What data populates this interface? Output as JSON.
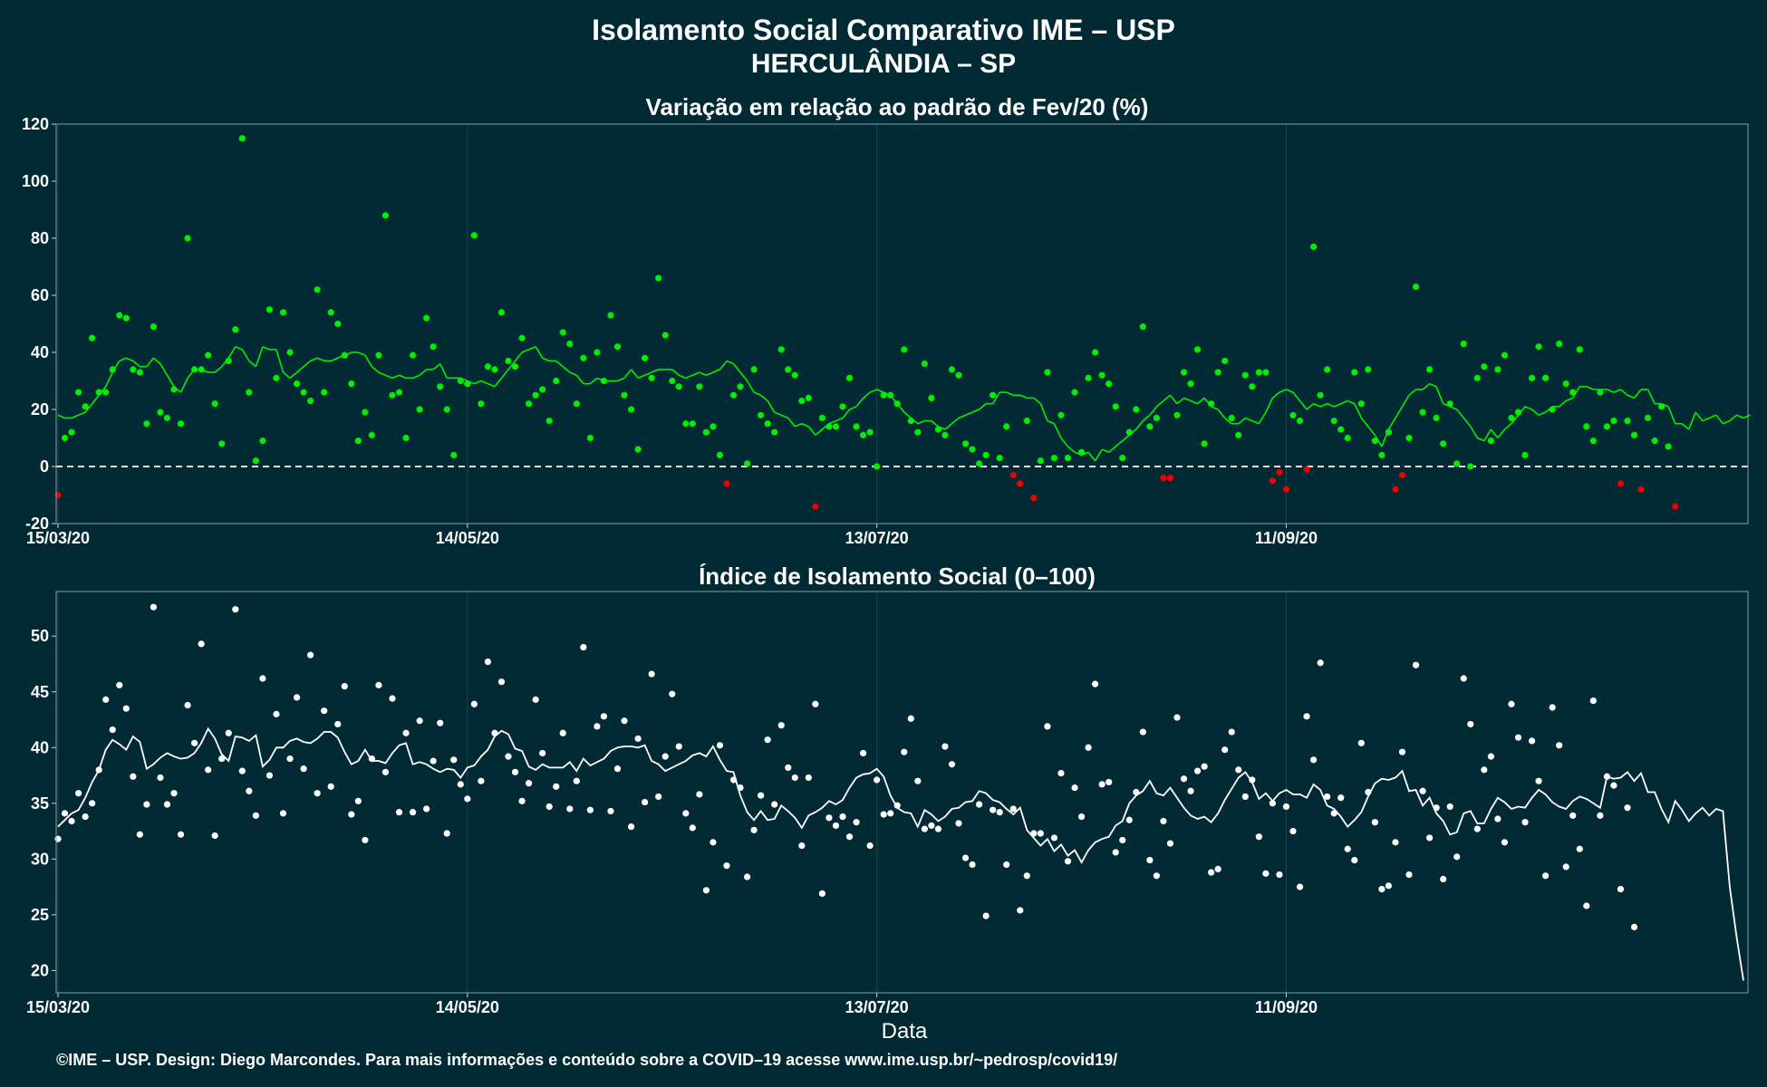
{
  "title_line1": "Isolamento Social Comparativo IME – USP",
  "title_line2": "HERCULÂNDIA – SP",
  "xlabel": "Data",
  "footer": "©IME – USP. Design: Diego Marcondes. Para mais informações e conteúdo sobre a COVID–19 acesse www.ime.usp.br/~pedrosp/covid19/",
  "colors": {
    "background": "#022a35",
    "positive": "#00ee00",
    "negative": "#ee0000",
    "index": "#ffffff"
  },
  "chart_data": [
    {
      "type": "scatter",
      "title": "Variação em relação ao padrão de Fev/20 (%)",
      "x_ticks": [
        "15/03/20",
        "14/05/20",
        "13/07/20",
        "11/09/20"
      ],
      "ylim": [
        -20,
        120
      ],
      "y_ticks": [
        -20,
        0,
        20,
        40,
        60,
        80,
        100,
        120
      ],
      "reference_line": 0,
      "x_start": "15/03/20",
      "values": [
        -10,
        10,
        12,
        26,
        21,
        45,
        26,
        26,
        34,
        53,
        52,
        34,
        33,
        15,
        49,
        19,
        17,
        27,
        15,
        80,
        34,
        34,
        39,
        22,
        8,
        37,
        48,
        115,
        26,
        2,
        9,
        55,
        31,
        54,
        40,
        29,
        26,
        23,
        62,
        26,
        54,
        50,
        39,
        29,
        9,
        19,
        11,
        39,
        88,
        25,
        26,
        10,
        39,
        20,
        52,
        42,
        28,
        20,
        4,
        30,
        29,
        81,
        22,
        35,
        34,
        54,
        37,
        35,
        45,
        22,
        25,
        27,
        16,
        30,
        47,
        43,
        22,
        38,
        10,
        40,
        30,
        53,
        42,
        25,
        20,
        6,
        38,
        31,
        66,
        46,
        30,
        28,
        15,
        15,
        28,
        12,
        14,
        4,
        -6,
        25,
        28,
        1,
        34,
        18,
        15,
        12,
        41,
        34,
        32,
        23,
        24,
        -14,
        17,
        14,
        14,
        21,
        31,
        14,
        11,
        12,
        0,
        25,
        25,
        22,
        41,
        16,
        12,
        36,
        24,
        13,
        11,
        34,
        32,
        8,
        6,
        1,
        4,
        25,
        3,
        14,
        -3,
        -6,
        16,
        -11,
        2,
        33,
        3,
        18,
        3,
        26,
        5,
        31,
        40,
        32,
        29,
        21,
        3,
        12,
        20,
        49,
        14,
        17,
        -4,
        -4,
        18,
        33,
        29,
        41,
        8,
        22,
        33,
        37,
        17,
        11,
        32,
        28,
        33,
        33,
        -5,
        -2,
        -8,
        18,
        16,
        -1,
        77,
        25,
        34,
        16,
        13,
        10,
        33,
        22,
        34,
        9,
        4,
        12,
        -8,
        -3,
        10,
        63,
        19,
        34,
        17,
        8,
        22,
        1,
        43,
        0,
        31,
        35,
        9,
        34,
        39,
        17,
        19,
        4,
        31,
        42,
        31,
        20,
        43,
        29,
        26,
        41,
        14,
        9,
        26,
        14,
        16,
        -6,
        16,
        11,
        -8,
        17,
        9,
        21,
        7,
        -14
      ],
      "rolling_mean": [
        18,
        17,
        17,
        18,
        19,
        22,
        25,
        28,
        33,
        37,
        38,
        37,
        35,
        35,
        38,
        36,
        32,
        28,
        26,
        31,
        34,
        34,
        33,
        33,
        35,
        38,
        42,
        41,
        37,
        35,
        42,
        41,
        41,
        33,
        31,
        33,
        35,
        37,
        38,
        37,
        37,
        38,
        39,
        40,
        40,
        39,
        35,
        33,
        32,
        31,
        32,
        31,
        31,
        32,
        34,
        34,
        36,
        31,
        31,
        31,
        30,
        29,
        30,
        29,
        28,
        31,
        34,
        37,
        40,
        41,
        42,
        38,
        37,
        37,
        35,
        33,
        32,
        29,
        29,
        31,
        30,
        30,
        30,
        31,
        34,
        31,
        32,
        33,
        34,
        34,
        34,
        32,
        31,
        32,
        33,
        32,
        33,
        34,
        37,
        36,
        33,
        30,
        26,
        25,
        23,
        19,
        18,
        17,
        14,
        15,
        14,
        11,
        13,
        15,
        16,
        17,
        20,
        21,
        24,
        26,
        27,
        26,
        25,
        22,
        19,
        17,
        15,
        16,
        16,
        14,
        13,
        15,
        17,
        18,
        19,
        20,
        22,
        22,
        26,
        26,
        25,
        25,
        24,
        24,
        22,
        16,
        15,
        10,
        7,
        5,
        4,
        5,
        2,
        6,
        5,
        7,
        9,
        11,
        13,
        16,
        18,
        21,
        23,
        25,
        22,
        24,
        23,
        22,
        24,
        21,
        20,
        17,
        15,
        15,
        17,
        16,
        15,
        19,
        24,
        26,
        27,
        26,
        23,
        20,
        22,
        21,
        22,
        21,
        22,
        23,
        22,
        17,
        14,
        11,
        7,
        13,
        17,
        21,
        25,
        27,
        27,
        29,
        28,
        22,
        21,
        20,
        17,
        14,
        10,
        9,
        13,
        10,
        13,
        15,
        18,
        21,
        20,
        18,
        19,
        21,
        21,
        23,
        24,
        28,
        28,
        27,
        27,
        27,
        26,
        27,
        25,
        24,
        27,
        27,
        22,
        22,
        21,
        15,
        15,
        13,
        19,
        16,
        17,
        18,
        15,
        16,
        18,
        17,
        18
      ]
    },
    {
      "type": "scatter",
      "title": "Índice de Isolamento Social (0–100)",
      "x_ticks": [
        "15/03/20",
        "14/05/20",
        "13/07/20",
        "11/09/20"
      ],
      "xlabel": "Data",
      "ylim": [
        18,
        54
      ],
      "y_ticks": [
        20,
        25,
        30,
        35,
        40,
        45,
        50
      ],
      "x_start": "15/03/20",
      "values": [
        31.8,
        34.1,
        33.4,
        35.9,
        33.8,
        35.0,
        38.0,
        44.3,
        41.6,
        45.6,
        43.5,
        37.4,
        32.2,
        34.9,
        52.6,
        37.3,
        34.9,
        35.9,
        32.2,
        43.8,
        40.4,
        49.3,
        38.0,
        32.1,
        39.0,
        41.3,
        52.4,
        37.9,
        36.1,
        33.9,
        46.2,
        37.5,
        43.0,
        34.1,
        39.0,
        44.5,
        38.1,
        48.3,
        35.9,
        43.3,
        36.5,
        42.1,
        45.5,
        34.0,
        35.2,
        31.7,
        39.0,
        45.6,
        37.8,
        44.4,
        34.2,
        41.3,
        34.2,
        42.4,
        34.5,
        38.8,
        42.2,
        32.3,
        38.9,
        36.7,
        35.4,
        43.9,
        37.0,
        47.7,
        41.3,
        45.9,
        39.2,
        37.8,
        35.2,
        36.8,
        44.3,
        39.5,
        34.7,
        36.5,
        41.3,
        34.5,
        37.0,
        49.0,
        34.4,
        41.9,
        42.8,
        34.3,
        38.1,
        42.4,
        32.9,
        40.8,
        35.1,
        46.6,
        35.6,
        39.2,
        44.8,
        40.1,
        34.1,
        32.8,
        35.8,
        27.2,
        31.5,
        40.2,
        29.4,
        37.1,
        36.4,
        28.4,
        32.6,
        35.7,
        40.7,
        34.9,
        42.0,
        38.2,
        37.3,
        31.2,
        37.3,
        43.9,
        26.9,
        33.7,
        33.0,
        33.8,
        32.0,
        33.3,
        39.5,
        31.2,
        37.1,
        34.0,
        34.1,
        34.8,
        39.6,
        42.6,
        37.0,
        32.7,
        33.0,
        32.7,
        40.1,
        38.5,
        33.2,
        30.1,
        29.5,
        34.9,
        24.9,
        34.4,
        34.2,
        29.5,
        34.5,
        25.4,
        28.5,
        32.3,
        32.3,
        41.9,
        31.9,
        37.7,
        29.8,
        36.4,
        33.8,
        40.0,
        45.7,
        36.7,
        36.9,
        30.6,
        31.7,
        33.5,
        36.0,
        41.4,
        29.9,
        28.5,
        33.4,
        31.4,
        42.7,
        37.2,
        36.1,
        37.9,
        38.3,
        28.8,
        29.1,
        39.8,
        41.4,
        38.0,
        35.6,
        37.1,
        32.0,
        28.7,
        35.0,
        28.6,
        34.7,
        32.5,
        27.5,
        42.8,
        38.9,
        47.6,
        35.6,
        34.1,
        35.5,
        30.9,
        29.9,
        40.4,
        36.0,
        33.3,
        27.3,
        27.6,
        31.5,
        39.6,
        28.6,
        47.4,
        36.1,
        31.9,
        34.6,
        28.2,
        34.7,
        30.2,
        46.2,
        42.1,
        32.7,
        38.0,
        39.2,
        33.6,
        31.5,
        43.9,
        40.9,
        33.3,
        40.6,
        37.0,
        28.5,
        43.6,
        40.2,
        29.3,
        33.9,
        30.9,
        25.8,
        44.2,
        33.9,
        37.4,
        36.6,
        27.3,
        34.6,
        23.9
      ],
      "rolling_mean": [
        32.9,
        33.5,
        34.1,
        34.4,
        35.5,
        36.9,
        38.0,
        39.8,
        40.7,
        40.3,
        39.8,
        41.0,
        40.5,
        38.1,
        38.5,
        39.1,
        39.5,
        39.2,
        39.0,
        39.1,
        39.5,
        40.4,
        41.7,
        40.8,
        39.4,
        38.8,
        41.0,
        40.9,
        40.6,
        41.1,
        38.3,
        38.9,
        40.0,
        40.0,
        40.6,
        40.8,
        40.5,
        40.4,
        40.8,
        41.4,
        41.4,
        40.9,
        39.6,
        38.5,
        38.8,
        39.8,
        38.8,
        38.8,
        38.6,
        39.5,
        40.2,
        40.4,
        38.5,
        38.7,
        38.5,
        38.1,
        37.8,
        38.1,
        38.0,
        37.3,
        38.2,
        38.4,
        39.2,
        39.8,
        41.0,
        41.5,
        41.2,
        39.9,
        39.7,
        38.3,
        38.0,
        38.5,
        38.2,
        38.2,
        38.2,
        38.7,
        37.9,
        39.0,
        38.4,
        38.7,
        39.0,
        39.7,
        40.0,
        40.1,
        40.1,
        40.0,
        40.2,
        38.8,
        38.5,
        37.9,
        38.2,
        38.5,
        38.8,
        39.3,
        39.5,
        39.2,
        40.1,
        38.9,
        37.9,
        37.8,
        35.7,
        34.2,
        33.5,
        34.3,
        33.5,
        33.6,
        34.8,
        34.3,
        33.7,
        32.8,
        33.9,
        34.2,
        34.6,
        35.2,
        34.9,
        35.3,
        36.4,
        37.3,
        37.6,
        37.7,
        38.1,
        37.4,
        35.7,
        34.6,
        34.2,
        34.1,
        32.9,
        34.4,
        34.0,
        33.4,
        33.8,
        34.5,
        34.6,
        35.1,
        35.2,
        36.1,
        35.9,
        35.3,
        35.1,
        34.5,
        34.0,
        34.6,
        32.6,
        31.9,
        31.2,
        31.8,
        30.7,
        31.3,
        30.3,
        30.8,
        29.7,
        30.8,
        31.5,
        31.8,
        32.0,
        33.0,
        33.4,
        35.0,
        35.7,
        36.1,
        37.0,
        35.9,
        35.7,
        36.4,
        35.5,
        34.6,
        33.9,
        33.6,
        33.8,
        33.3,
        34.1,
        35.3,
        36.3,
        37.3,
        37.8,
        36.9,
        35.4,
        35.9,
        35.2,
        35.9,
        36.2,
        35.8,
        35.8,
        35.5,
        36.7,
        36.2,
        34.8,
        34.5,
        33.8,
        32.9,
        33.5,
        34.2,
        35.6,
        36.8,
        37.2,
        37.1,
        37.3,
        37.9,
        36.1,
        36.2,
        34.8,
        35.5,
        34.1,
        33.4,
        32.2,
        32.4,
        34.1,
        34.3,
        33.2,
        33.2,
        34.5,
        35.5,
        35.1,
        34.5,
        34.7,
        34.6,
        35.5,
        36.2,
        35.8,
        35.1,
        34.7,
        34.5,
        35.2,
        35.6,
        35.4,
        35.0,
        34.6,
        37.4,
        37.2,
        37.3,
        37.8,
        37.0,
        37.7,
        36.0,
        36.0,
        34.5,
        33.3,
        35.2,
        34.4,
        33.4,
        34.1,
        34.6,
        33.9,
        34.5,
        34.3,
        27.5,
        23.0,
        19.1
      ]
    }
  ]
}
